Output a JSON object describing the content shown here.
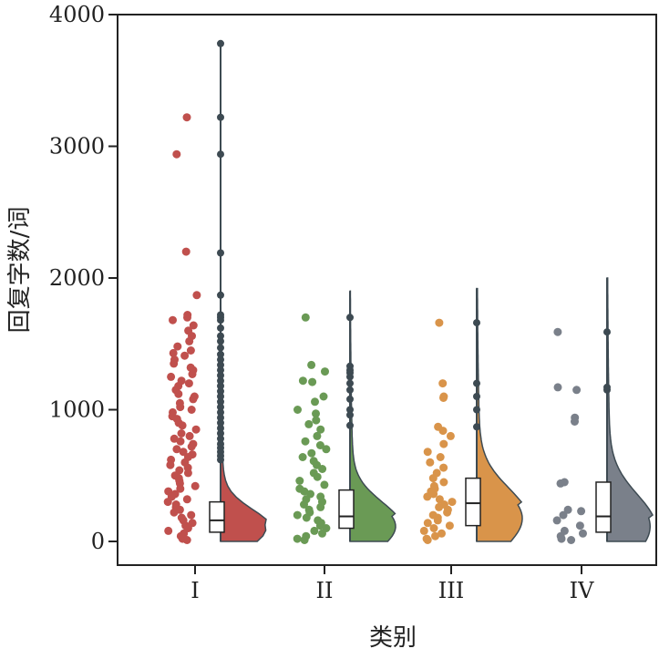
{
  "chart_data": {
    "type": "raincloud",
    "title": "",
    "xlabel": "类别",
    "ylabel": "回复字数/词",
    "ylim": [
      -180,
      4000
    ],
    "yticks": [
      0,
      1000,
      2000,
      3000,
      4000
    ],
    "grid": false,
    "legend": "none",
    "categories": [
      "I",
      "II",
      "III",
      "IV"
    ],
    "colors": {
      "I": "#c0504d",
      "II": "#6a9a55",
      "III": "#d9944a",
      "IV": "#7a808a",
      "whisker": "#3d4a52"
    },
    "series": [
      {
        "name": "I",
        "box": {
          "q1": 70,
          "median": 160,
          "q3": 300,
          "whisker_low": 0,
          "whisker_high": 3780
        },
        "outliers": [
          620,
          650,
          680,
          710,
          740,
          780,
          820,
          860,
          900,
          940,
          980,
          1020,
          1060,
          1100,
          1140,
          1180,
          1220,
          1260,
          1300,
          1340,
          1380,
          1420,
          1470,
          1520,
          1560,
          1620,
          1680,
          1700,
          1720,
          1870,
          2190,
          2940,
          3220,
          3780
        ],
        "points": [
          3220,
          2940,
          2200,
          1870,
          1720,
          1700,
          1680,
          1640,
          1600,
          1560,
          1520,
          1480,
          1450,
          1430,
          1410,
          1380,
          1350,
          1320,
          1300,
          1270,
          1250,
          1220,
          1200,
          1180,
          1150,
          1120,
          1100,
          1080,
          1050,
          1020,
          1000,
          980,
          950,
          930,
          900,
          880,
          850,
          820,
          800,
          780,
          760,
          740,
          720,
          700,
          680,
          660,
          640,
          620,
          600,
          580,
          560,
          540,
          520,
          500,
          480,
          460,
          440,
          420,
          400,
          380,
          360,
          340,
          320,
          300,
          280,
          260,
          240,
          220,
          200,
          180,
          160,
          140,
          120,
          100,
          80,
          60,
          40,
          20,
          10
        ]
      },
      {
        "name": "II",
        "box": {
          "q1": 100,
          "median": 190,
          "q3": 390,
          "whisker_low": 0,
          "whisker_high": 1900
        },
        "outliers": [
          880,
          960,
          1000,
          1080,
          1150,
          1200,
          1250,
          1280,
          1300,
          1330,
          1700
        ],
        "points": [
          1700,
          1340,
          1290,
          1220,
          1210,
          1100,
          1060,
          1000,
          970,
          920,
          890,
          850,
          800,
          760,
          730,
          700,
          670,
          640,
          610,
          580,
          550,
          520,
          490,
          460,
          430,
          400,
          380,
          360,
          340,
          320,
          300,
          280,
          260,
          240,
          220,
          200,
          180,
          160,
          140,
          120,
          100,
          80,
          60,
          40,
          20,
          10
        ]
      },
      {
        "name": "III",
        "box": {
          "q1": 120,
          "median": 290,
          "q3": 480,
          "whisker_low": 0,
          "whisker_high": 1920
        },
        "outliers": [
          870,
          1000,
          1100,
          1200,
          1660
        ],
        "points": [
          1660,
          1200,
          1100,
          1090,
          870,
          840,
          800,
          740,
          680,
          640,
          600,
          560,
          520,
          480,
          450,
          420,
          400,
          380,
          360,
          340,
          320,
          300,
          280,
          260,
          240,
          220,
          200,
          180,
          160,
          140,
          120,
          100,
          80,
          60,
          40,
          20,
          10
        ]
      },
      {
        "name": "IV",
        "box": {
          "q1": 70,
          "median": 190,
          "q3": 450,
          "whisker_low": 0,
          "whisker_high": 2000
        },
        "outliers": [
          1150,
          1170,
          1590
        ],
        "points": [
          1590,
          1170,
          1150,
          940,
          910,
          450,
          440,
          240,
          230,
          200,
          160,
          120,
          80,
          60,
          40,
          20,
          10
        ]
      }
    ]
  }
}
